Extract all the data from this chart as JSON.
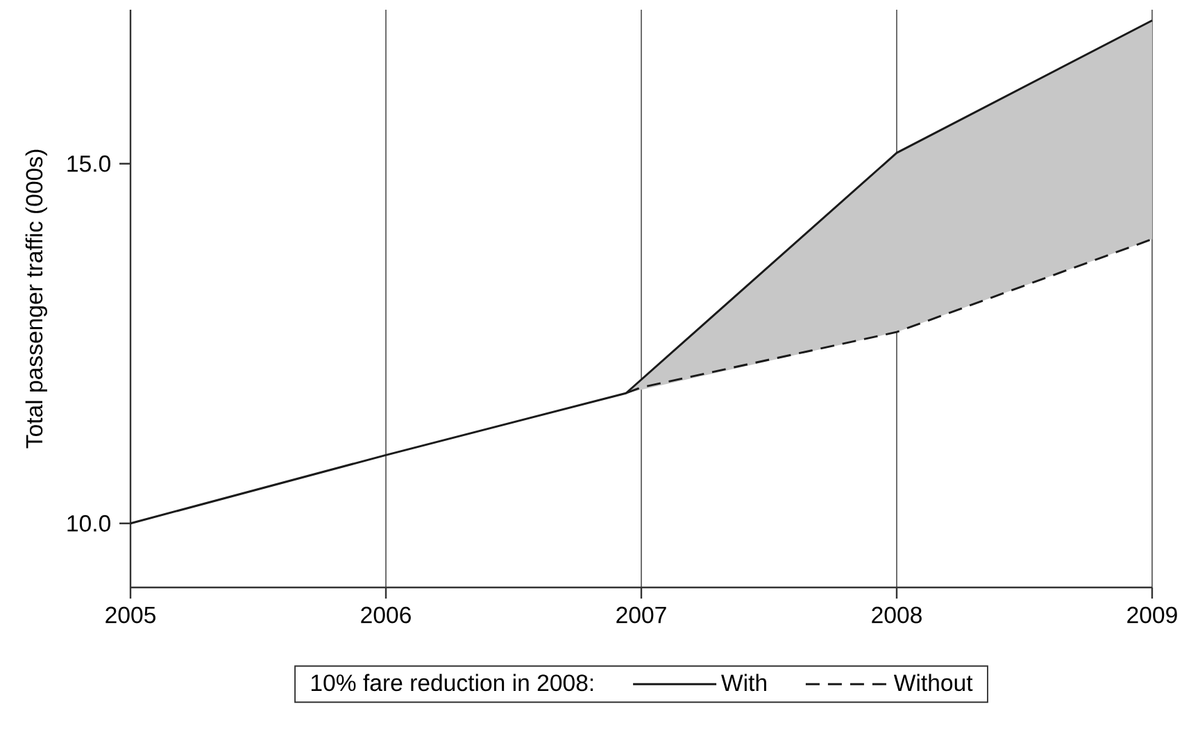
{
  "chart_data": {
    "type": "line",
    "ylabel": "Total passenger traffic (000s)",
    "legend_title": "10% fare reduction in 2008:",
    "xlim": [
      2005,
      2009
    ],
    "xticks": [
      2005,
      2006,
      2007,
      2008,
      2009
    ],
    "ylim": [
      9.11,
      17.14
    ],
    "yticks": [
      {
        "value": 10,
        "label": "10.0"
      },
      {
        "value": 15,
        "label": "15.0"
      }
    ],
    "grid": "x",
    "legend": "bottom",
    "series": [
      {
        "name": "With",
        "color": "#1a1a1a",
        "line_style": "solid",
        "x": [
          2005,
          2006,
          2006.94,
          2008,
          2009
        ],
        "values": [
          10.0,
          10.95,
          11.81,
          15.15,
          16.99
        ],
        "lower": [
          null,
          null,
          11.81,
          12.66,
          13.95
        ],
        "upper": [
          null,
          null,
          11.81,
          15.15,
          16.99
        ]
      },
      {
        "name": "Without",
        "color": "#1a1a1a",
        "line_style": "dashed",
        "x": [
          2006.94,
          2007,
          2008,
          2009
        ],
        "values": [
          11.81,
          11.89,
          12.66,
          13.95
        ]
      }
    ]
  }
}
